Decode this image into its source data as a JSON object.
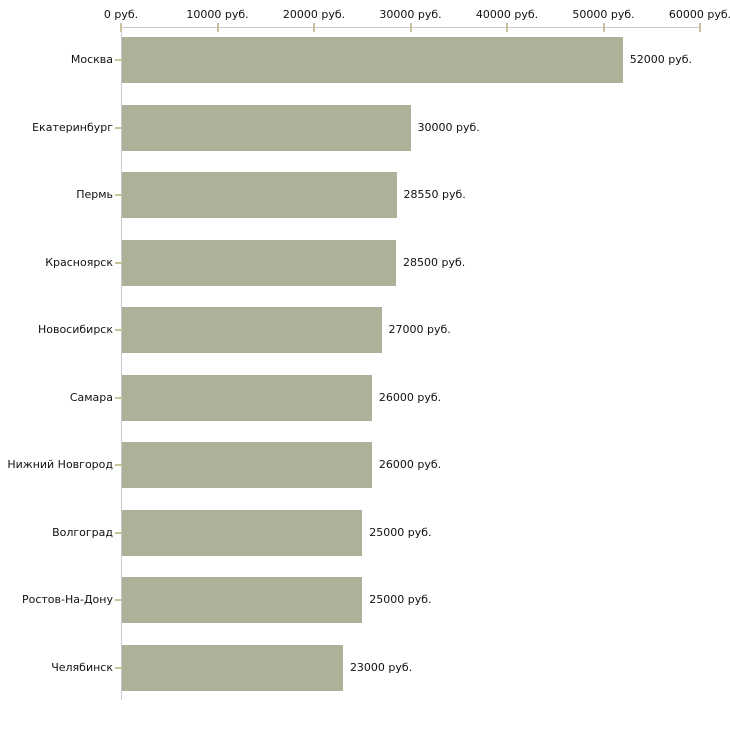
{
  "chart_data": {
    "type": "bar",
    "orientation": "horizontal",
    "title": "",
    "unit": "руб.",
    "categories": [
      "Москва",
      "Екатеринбург",
      "Пермь",
      "Красноярск",
      "Новосибирск",
      "Самара",
      "Нижний Новгород",
      "Волгоград",
      "Ростов-На-Дону",
      "Челябинск"
    ],
    "values": [
      52000,
      30000,
      28550,
      28500,
      27000,
      26000,
      26000,
      25000,
      25000,
      23000
    ],
    "value_labels": [
      "52000 руб.",
      "30000 руб.",
      "28550 руб.",
      "28500 руб.",
      "27000 руб.",
      "26000 руб.",
      "26000 руб.",
      "25000 руб.",
      "25000 руб.",
      "23000 руб."
    ],
    "x_axis": {
      "position": "top",
      "min": 0,
      "max": 60000,
      "ticks": [
        0,
        10000,
        20000,
        30000,
        40000,
        50000,
        60000
      ],
      "tick_labels": [
        "0 руб.",
        "10000 руб.",
        "20000 руб.",
        "30000 руб.",
        "40000 руб.",
        "50000 руб.",
        "60000 руб."
      ]
    },
    "y_axis": {
      "position": "left"
    },
    "legend": "none",
    "grid": false,
    "colors": {
      "bar": "#acb299",
      "axis_line": "#c9c9c9",
      "tick_mark": "#c9c39c",
      "label_text": "#111111",
      "background": "#ffffff"
    }
  }
}
